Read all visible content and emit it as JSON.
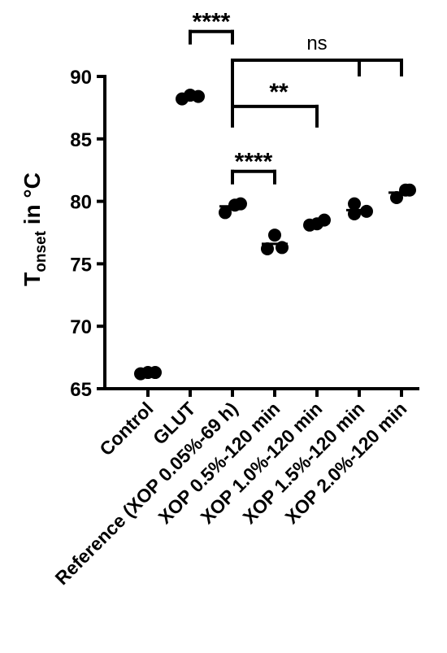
{
  "chart_data": {
    "type": "scatter",
    "ylabel_main": "T",
    "ylabel_subscript": "onset",
    "ylabel_suffix": " in °C",
    "ylim": [
      65,
      90
    ],
    "yticks": [
      "65",
      "70",
      "75",
      "80",
      "85",
      "90"
    ],
    "ytick_values": [
      65,
      70,
      75,
      80,
      85,
      90
    ],
    "categories": [
      "Control",
      "GLUT",
      "Reference (XOP 0.05%-69 h)",
      "XOP 0.5%-120 min",
      "XOP 1.0%-120 min",
      "XOP 1.5%-120 min",
      "XOP 2.0%-120 min"
    ],
    "groups": [
      {
        "mean": 66.3,
        "points": [
          66.2,
          66.3,
          66.3
        ]
      },
      {
        "mean": 88.4,
        "points": [
          88.2,
          88.5,
          88.4
        ]
      },
      {
        "mean": 79.6,
        "points": [
          79.1,
          79.7,
          79.8
        ]
      },
      {
        "mean": 76.6,
        "points": [
          77.3,
          76.2,
          76.3
        ]
      },
      {
        "mean": 78.3,
        "points": [
          78.1,
          78.2,
          78.5
        ]
      },
      {
        "mean": 79.3,
        "points": [
          79.8,
          79.0,
          79.2
        ]
      },
      {
        "mean": 80.7,
        "points": [
          80.3,
          80.9,
          80.9
        ]
      }
    ],
    "annotations": [
      {
        "label": "****",
        "from": 1,
        "to": 2,
        "y": 93.6
      },
      {
        "label": "ns",
        "from": 2,
        "to": 6,
        "y": 91.3,
        "drops": [
          2,
          5,
          6
        ]
      },
      {
        "label": "**",
        "from": 2,
        "to": 4,
        "y": 87.6
      },
      {
        "label": "****",
        "from": 2,
        "to": 3,
        "y": 82.4
      }
    ]
  }
}
